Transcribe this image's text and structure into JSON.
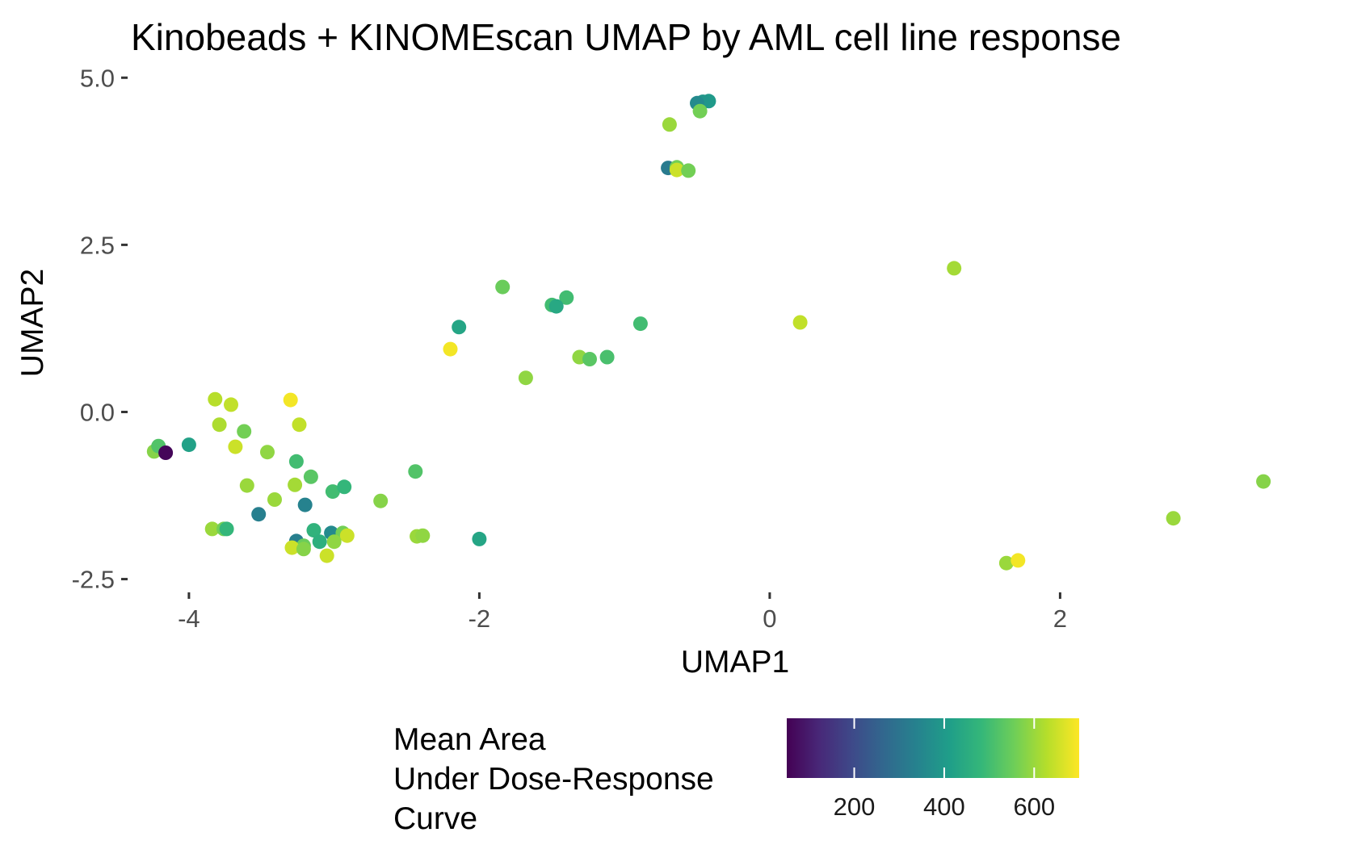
{
  "chart_data": {
    "type": "scatter",
    "title": "Kinobeads + KINOMEscan UMAP by AML cell line response",
    "xlabel": "UMAP1",
    "ylabel": "UMAP2",
    "xlim": [
      -4.4,
      3.6
    ],
    "ylim": [
      -2.65,
      5.1
    ],
    "x_ticks": [
      -4,
      -2,
      0,
      2
    ],
    "x_tick_labels": [
      "-4",
      "-2",
      "0",
      "2"
    ],
    "y_ticks": [
      5,
      2.5,
      0,
      -2.5
    ],
    "y_tick_labels": [
      "5.0",
      "2.5",
      "0.0",
      "-2.5"
    ],
    "grid": false,
    "legend": {
      "title_lines": [
        "Mean Area",
        "Under Dose-Response",
        "Curve"
      ],
      "placement": "bottom",
      "color_range": [
        50,
        700
      ],
      "ticks": [
        200,
        400,
        600
      ],
      "tick_labels": [
        "200",
        "400",
        "600"
      ],
      "colormap": [
        "#440154",
        "#482878",
        "#3e4989",
        "#31688e",
        "#26828e",
        "#1f9e89",
        "#35b779",
        "#6ece58",
        "#b5de2b",
        "#fde725"
      ]
    },
    "points": [
      {
        "x": -0.42,
        "y": 4.65,
        "value": 400
      },
      {
        "x": -0.46,
        "y": 4.64,
        "value": 390
      },
      {
        "x": -0.5,
        "y": 4.62,
        "value": 360
      },
      {
        "x": -0.48,
        "y": 4.5,
        "value": 560
      },
      {
        "x": -0.69,
        "y": 4.3,
        "value": 600
      },
      {
        "x": -0.7,
        "y": 3.65,
        "value": 320
      },
      {
        "x": -0.64,
        "y": 3.66,
        "value": 560
      },
      {
        "x": -0.64,
        "y": 3.62,
        "value": 650
      },
      {
        "x": -0.56,
        "y": 3.61,
        "value": 560
      },
      {
        "x": 1.27,
        "y": 2.15,
        "value": 610
      },
      {
        "x": 0.21,
        "y": 1.34,
        "value": 640
      },
      {
        "x": -1.84,
        "y": 1.87,
        "value": 550
      },
      {
        "x": -1.4,
        "y": 1.71,
        "value": 500
      },
      {
        "x": -1.5,
        "y": 1.6,
        "value": 500
      },
      {
        "x": -1.47,
        "y": 1.58,
        "value": 440
      },
      {
        "x": -2.14,
        "y": 1.27,
        "value": 430
      },
      {
        "x": -0.89,
        "y": 1.32,
        "value": 500
      },
      {
        "x": -2.2,
        "y": 0.94,
        "value": 690
      },
      {
        "x": -1.31,
        "y": 0.82,
        "value": 590
      },
      {
        "x": -1.24,
        "y": 0.79,
        "value": 530
      },
      {
        "x": -1.12,
        "y": 0.82,
        "value": 510
      },
      {
        "x": -1.68,
        "y": 0.51,
        "value": 590
      },
      {
        "x": -3.82,
        "y": 0.19,
        "value": 630
      },
      {
        "x": -3.71,
        "y": 0.11,
        "value": 640
      },
      {
        "x": -3.3,
        "y": 0.18,
        "value": 690
      },
      {
        "x": -3.79,
        "y": -0.19,
        "value": 620
      },
      {
        "x": -3.24,
        "y": -0.19,
        "value": 640
      },
      {
        "x": -3.62,
        "y": -0.29,
        "value": 560
      },
      {
        "x": -3.68,
        "y": -0.52,
        "value": 650
      },
      {
        "x": -3.46,
        "y": -0.6,
        "value": 590
      },
      {
        "x": -4.24,
        "y": -0.59,
        "value": 580
      },
      {
        "x": -4.21,
        "y": -0.51,
        "value": 520
      },
      {
        "x": -4.16,
        "y": -0.61,
        "value": 60
      },
      {
        "x": -4.0,
        "y": -0.49,
        "value": 420
      },
      {
        "x": -3.26,
        "y": -0.74,
        "value": 500
      },
      {
        "x": -3.16,
        "y": -0.97,
        "value": 530
      },
      {
        "x": -3.27,
        "y": -1.09,
        "value": 610
      },
      {
        "x": -3.6,
        "y": -1.1,
        "value": 600
      },
      {
        "x": -3.41,
        "y": -1.31,
        "value": 600
      },
      {
        "x": -3.2,
        "y": -1.39,
        "value": 340
      },
      {
        "x": -3.01,
        "y": -1.19,
        "value": 500
      },
      {
        "x": -2.93,
        "y": -1.12,
        "value": 480
      },
      {
        "x": -2.68,
        "y": -1.33,
        "value": 580
      },
      {
        "x": -2.44,
        "y": -0.89,
        "value": 520
      },
      {
        "x": -3.52,
        "y": -1.53,
        "value": 330
      },
      {
        "x": -3.84,
        "y": -1.75,
        "value": 600
      },
      {
        "x": -3.76,
        "y": -1.75,
        "value": 560
      },
      {
        "x": -3.74,
        "y": -1.75,
        "value": 480
      },
      {
        "x": -3.14,
        "y": -1.77,
        "value": 470
      },
      {
        "x": -3.02,
        "y": -1.81,
        "value": 360
      },
      {
        "x": -2.94,
        "y": -1.81,
        "value": 560
      },
      {
        "x": -2.91,
        "y": -1.85,
        "value": 650
      },
      {
        "x": -2.43,
        "y": -1.86,
        "value": 600
      },
      {
        "x": -2.39,
        "y": -1.85,
        "value": 590
      },
      {
        "x": -3.26,
        "y": -1.93,
        "value": 330
      },
      {
        "x": -3.1,
        "y": -1.94,
        "value": 460
      },
      {
        "x": -3.21,
        "y": -2.0,
        "value": 550
      },
      {
        "x": -3.29,
        "y": -2.03,
        "value": 650
      },
      {
        "x": -3.21,
        "y": -2.05,
        "value": 580
      },
      {
        "x": -3.0,
        "y": -1.94,
        "value": 590
      },
      {
        "x": -3.05,
        "y": -2.15,
        "value": 650
      },
      {
        "x": -2.0,
        "y": -1.9,
        "value": 430
      },
      {
        "x": 3.4,
        "y": -1.04,
        "value": 580
      },
      {
        "x": 2.78,
        "y": -1.59,
        "value": 600
      },
      {
        "x": 1.63,
        "y": -2.26,
        "value": 600
      },
      {
        "x": 1.71,
        "y": -2.22,
        "value": 690
      }
    ]
  }
}
